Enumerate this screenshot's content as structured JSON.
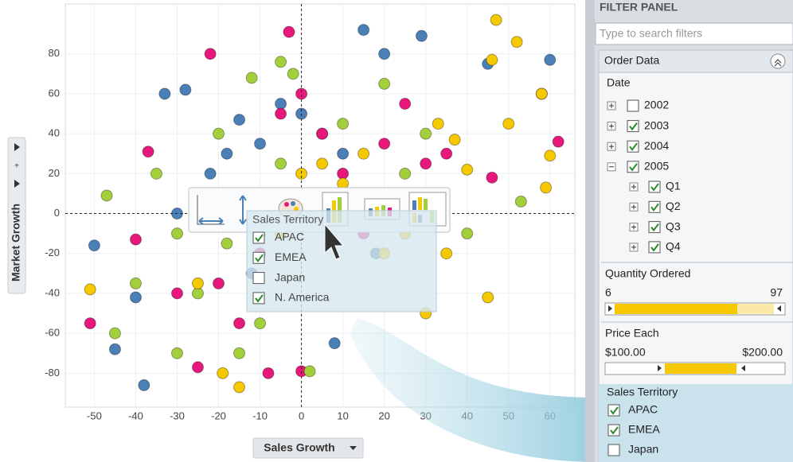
{
  "chart_data": {
    "type": "scatter",
    "x_label": "Sales Growth",
    "y_label": "Market Growth",
    "xlim": [
      -57,
      66
    ],
    "ylim": [
      -97,
      105
    ],
    "xticks": [
      -50,
      -40,
      -30,
      -20,
      -10,
      0,
      10,
      20,
      30,
      40,
      50,
      60
    ],
    "yticks": [
      -80,
      -60,
      -40,
      -20,
      0,
      20,
      40,
      60,
      80
    ],
    "grid": true,
    "series": [
      {
        "name": "APAC",
        "color": "#4a7fb8",
        "x": [
          -38,
          -45,
          -50,
          -40,
          -33,
          -28,
          -22,
          -18,
          -15,
          -10,
          -5,
          0,
          5,
          10,
          15,
          20,
          29,
          45,
          60,
          8,
          -12,
          -25,
          18,
          30,
          -30
        ],
        "y": [
          -86,
          -68,
          -16,
          -42,
          60,
          62,
          20,
          30,
          47,
          35,
          55,
          50,
          40,
          30,
          92,
          80,
          89,
          75,
          77,
          -65,
          -30,
          -5,
          -20,
          10,
          0
        ]
      },
      {
        "name": "EMEA",
        "color": "#e8177c",
        "x": [
          -51,
          -37,
          -22,
          -3,
          -25,
          -8,
          0,
          -40,
          -20,
          -15,
          -5,
          0,
          5,
          10,
          20,
          25,
          30,
          58,
          62,
          46,
          -30,
          -10,
          15,
          -20,
          35
        ],
        "y": [
          -55,
          31,
          80,
          91,
          -77,
          -80,
          -79,
          -13,
          -35,
          -55,
          50,
          60,
          40,
          20,
          35,
          55,
          25,
          60,
          36,
          18,
          -40,
          -20,
          -10,
          10,
          30
        ]
      },
      {
        "name": "Japan",
        "color": "#a3cf3a",
        "x": [
          -47,
          -40,
          -30,
          -35,
          -25,
          -20,
          -12,
          -5,
          -2,
          -15,
          10,
          20,
          30,
          -10,
          -45,
          5,
          -5,
          15,
          25,
          40,
          53,
          -30,
          -18,
          2
        ],
        "y": [
          9,
          -35,
          -70,
          20,
          -40,
          40,
          68,
          76,
          70,
          -70,
          45,
          65,
          40,
          -55,
          -60,
          10,
          25,
          0,
          20,
          -10,
          6,
          -10,
          -15,
          -79
        ]
      },
      {
        "name": "N. America",
        "color": "#f5c800",
        "x": [
          -51,
          -19,
          -15,
          47,
          52,
          46,
          58,
          60,
          59,
          45,
          33,
          37,
          40,
          35,
          25,
          10,
          20,
          15,
          0,
          5,
          -5,
          -25,
          -10,
          30,
          50
        ],
        "y": [
          -38,
          -80,
          -87,
          97,
          86,
          77,
          60,
          29,
          13,
          -42,
          45,
          37,
          22,
          -20,
          -10,
          15,
          -20,
          30,
          20,
          25,
          -10,
          -35,
          -10,
          -50,
          45
        ]
      }
    ]
  },
  "popup": {
    "title": "Sales Territory",
    "checked": [
      true,
      true,
      false,
      true
    ]
  },
  "filter_panel": {
    "title": "FILTER PANEL",
    "search_placeholder": "Type to search filters",
    "section": "Order Data",
    "date": {
      "label": "Date",
      "years": [
        {
          "label": "2002",
          "checked": false
        },
        {
          "label": "2003",
          "checked": true
        },
        {
          "label": "2004",
          "checked": true
        },
        {
          "label": "2005",
          "checked": true
        }
      ],
      "quarters": [
        {
          "label": "Q1",
          "checked": true
        },
        {
          "label": "Q2",
          "checked": true
        },
        {
          "label": "Q3",
          "checked": true
        },
        {
          "label": "Q4",
          "checked": true
        }
      ]
    },
    "quantity": {
      "label": "Quantity Ordered",
      "min": 6,
      "max": 97
    },
    "price": {
      "label": "Price Each",
      "min": "$100.00",
      "max": "$200.00"
    },
    "territory": {
      "label": "Sales Territory",
      "checked": [
        true,
        true,
        false
      ]
    }
  }
}
